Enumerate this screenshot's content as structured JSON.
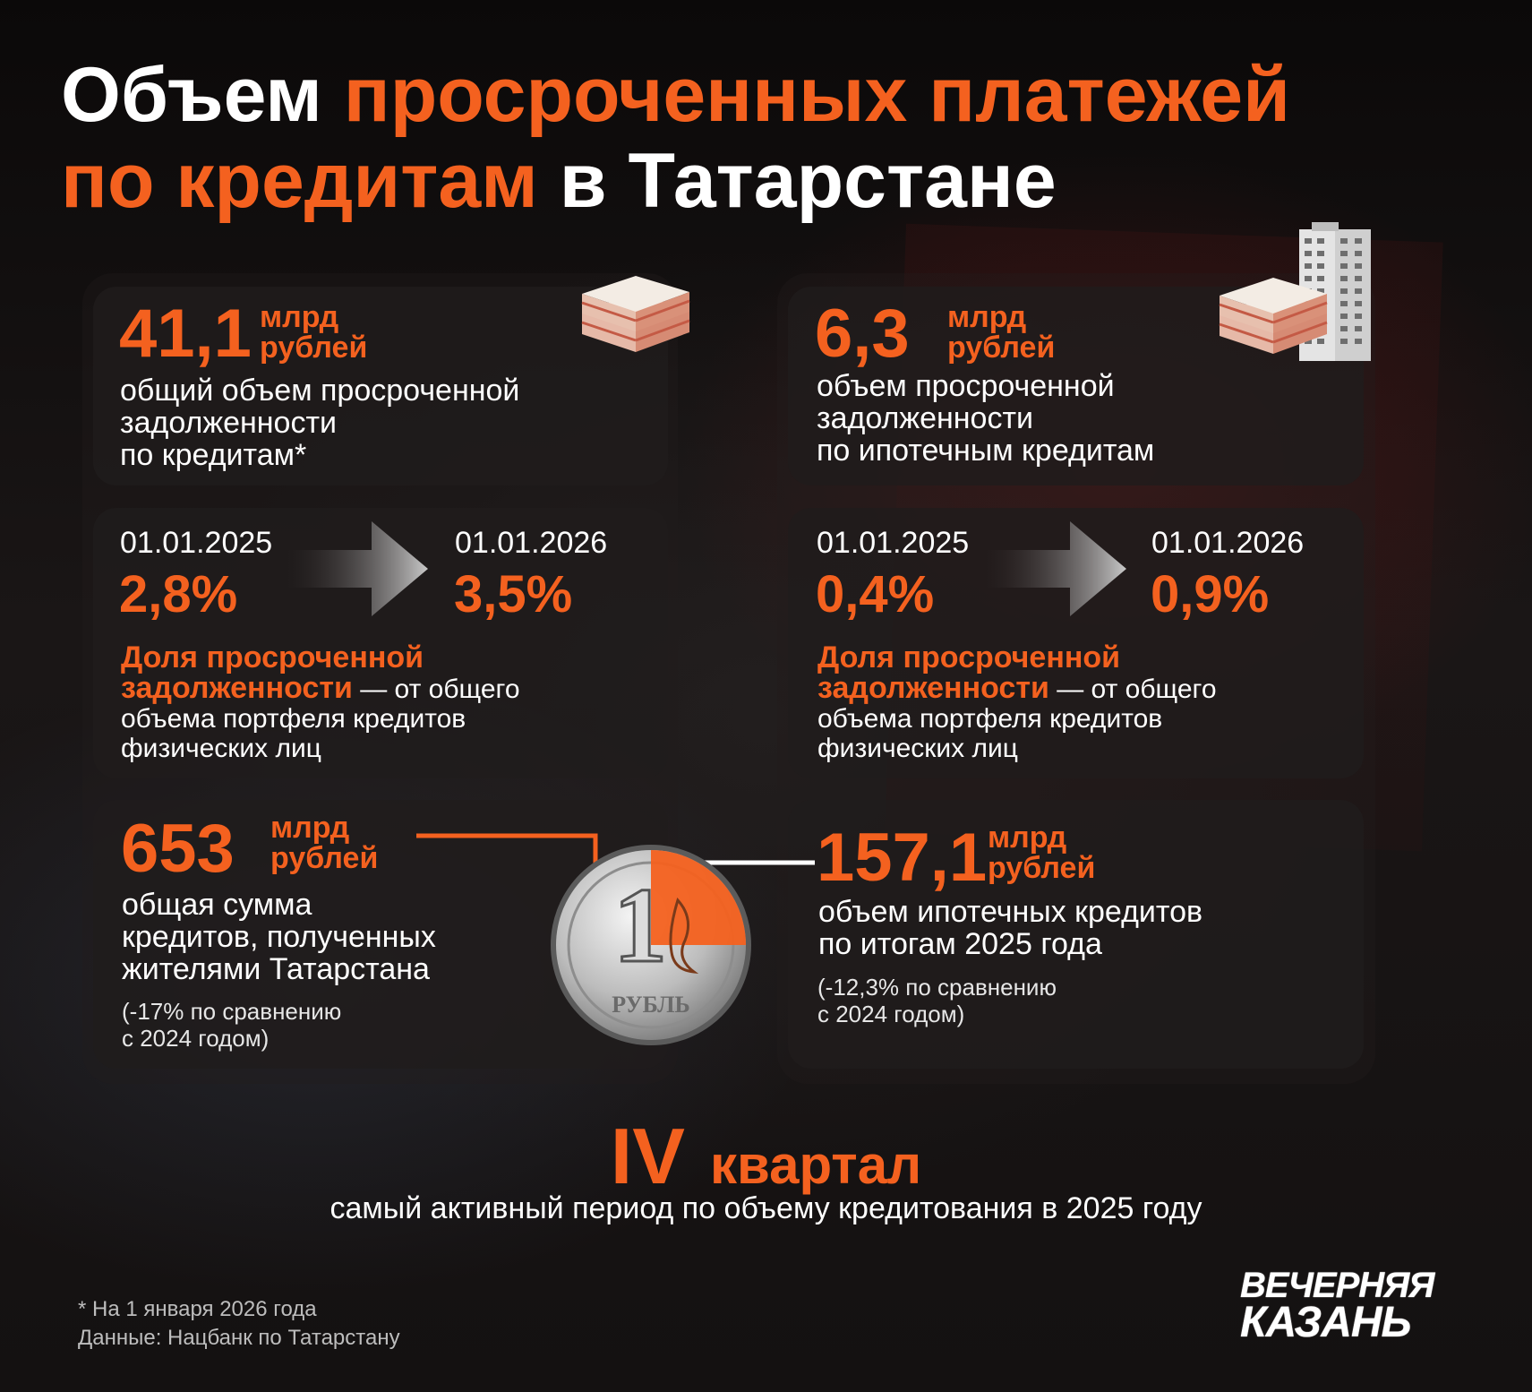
{
  "title": {
    "part1": "Объем ",
    "part2": "просроченных платежей",
    "part3": "по кредитам",
    "part4": " в Татарстане"
  },
  "left": {
    "card1": {
      "value": "41,1",
      "unit_line1": "млрд",
      "unit_line2": "рублей",
      "desc_line1": "общий объем просроченной",
      "desc_line2": "задолженности",
      "desc_line3": "по кредитам*"
    },
    "card2": {
      "date_from": "01.01.2025",
      "pct_from": "2,8%",
      "date_to": "01.01.2026",
      "pct_to": "3,5%",
      "share_hl1": "Доля просроченной",
      "share_hl2": "задолженности",
      "share_rest1": " — от общего",
      "share_line3": "объема портфеля кредитов",
      "share_line4": "физических лиц"
    },
    "card3": {
      "value": "653",
      "unit_line1": "млрд",
      "unit_line2": "рублей",
      "desc_line1": "общая сумма",
      "desc_line2": "кредитов, полученных",
      "desc_line3": "жителями Татарстана",
      "note_line1": "(-17% по сравнению",
      "note_line2": "с 2024 годом)"
    }
  },
  "right": {
    "card1": {
      "value": "6,3",
      "unit_line1": "млрд",
      "unit_line2": "рублей",
      "desc_line1": "объем просроченной",
      "desc_line2": "задолженности",
      "desc_line3": "по ипотечным кредитам"
    },
    "card2": {
      "date_from": "01.01.2025",
      "pct_from": "0,4%",
      "date_to": "01.01.2026",
      "pct_to": "0,9%",
      "share_hl1": "Доля просроченной",
      "share_hl2": "задолженности",
      "share_rest1": " — от общего",
      "share_line3": "объема портфеля кредитов",
      "share_line4": "физических лиц"
    },
    "card3": {
      "value": "157,1",
      "unit_line1": "млрд",
      "unit_line2": "рублей",
      "desc_line1": "объем ипотечных кредитов",
      "desc_line2": "по итогам 2025 года",
      "note_line1": "(-12,3% по сравнению",
      "note_line2": "с 2024 годом)"
    }
  },
  "coin": {
    "denomination": "1",
    "label": "РУБЛЬ",
    "orange_share_fraction": 0.25
  },
  "quarter": {
    "roman": "IV",
    "word": "квартал",
    "subtitle": "самый активный период по объему кредитования в 2025 году"
  },
  "footnote": {
    "line1": "* На 1 января 2026 года",
    "line2": "Данные: Нацбанк по Татарстану"
  },
  "logo": {
    "line1": "ВЕЧЕРНЯЯ",
    "line2": "КАЗАНЬ"
  },
  "colors": {
    "accent": "#f4611f",
    "background": "#0f0c0c",
    "card": "#201c1c",
    "text": "#ffffff"
  },
  "icons": [
    "money-stack-icon",
    "building-icon",
    "arrow-right-icon",
    "ruble-coin-icon"
  ]
}
